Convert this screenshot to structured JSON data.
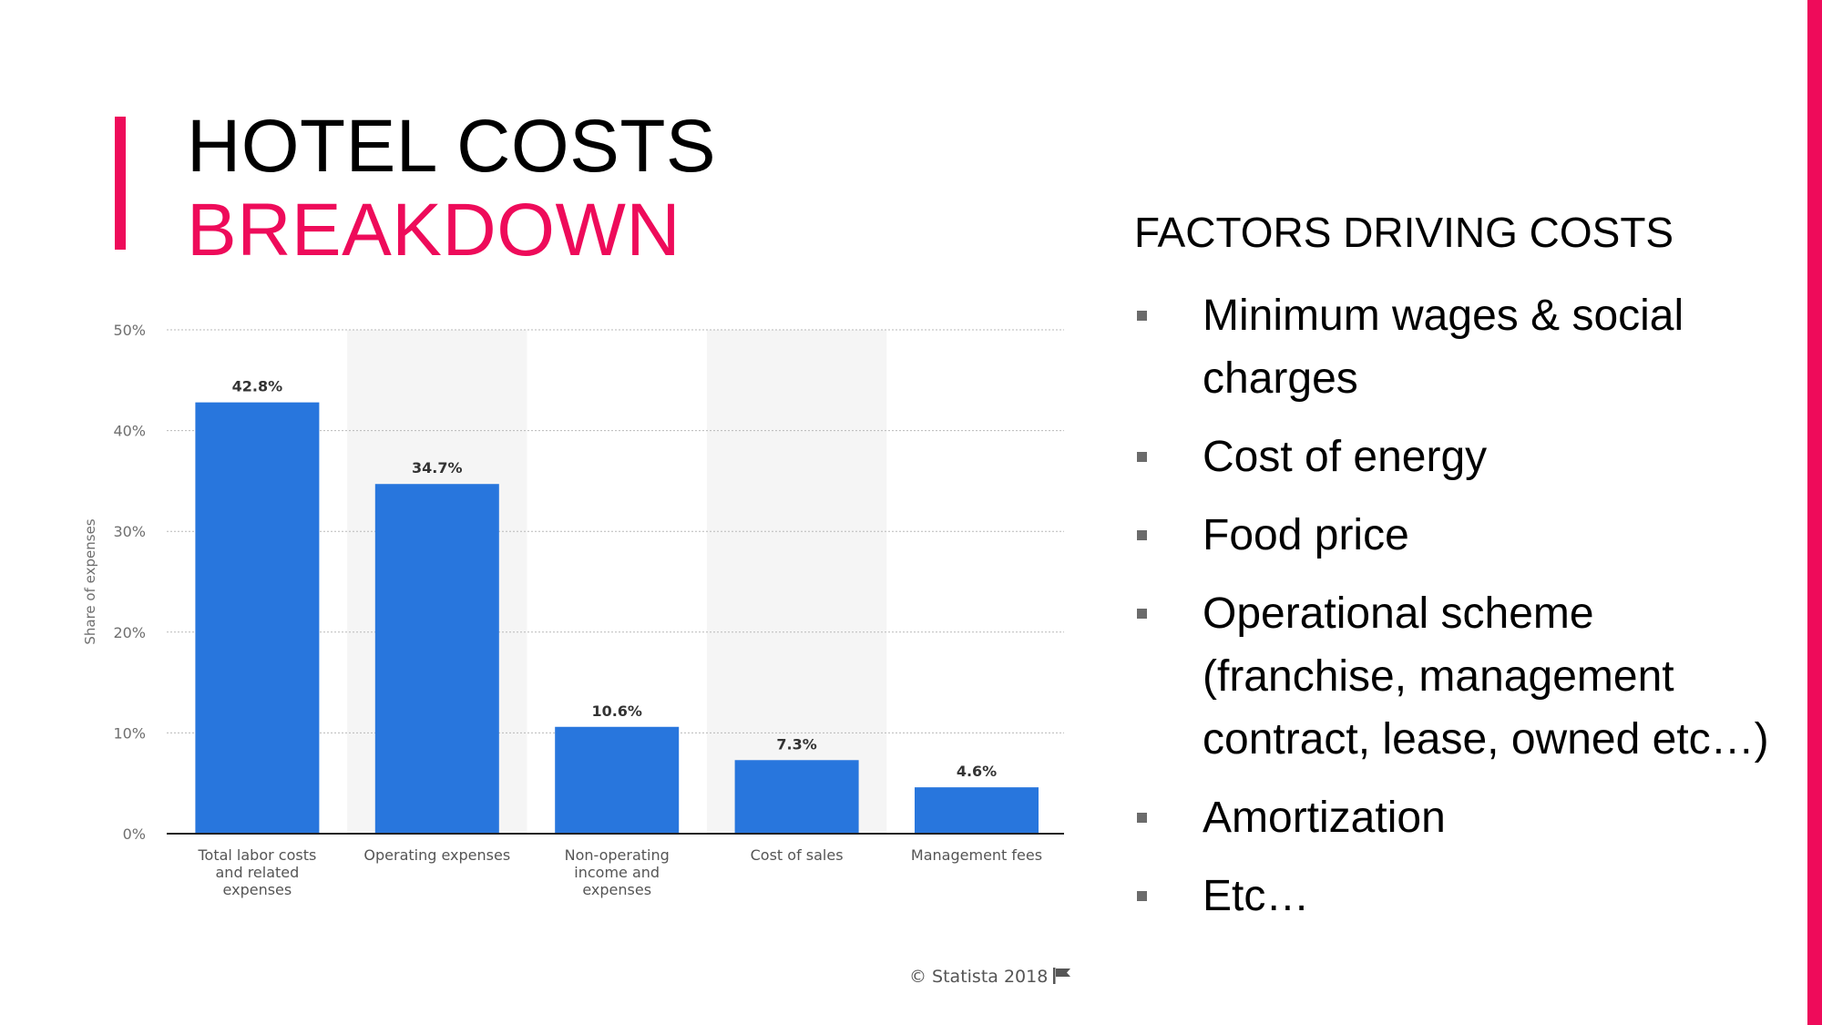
{
  "title": {
    "line1": "HOTEL COSTS",
    "line2": "BREAKDOWN"
  },
  "accent_color": "#ee0b5a",
  "bar_color": "#2876dd",
  "chart_data": {
    "type": "bar",
    "ylabel": "Share of expenses",
    "ylim": [
      0,
      50
    ],
    "yticks": [
      "0%",
      "10%",
      "20%",
      "30%",
      "40%",
      "50%"
    ],
    "categories": [
      "Total labor costs\nand related\nexpenses",
      "Operating expenses",
      "Non-operating\nincome and\nexpenses",
      "Cost of sales",
      "Management fees"
    ],
    "values": [
      42.8,
      34.7,
      10.6,
      7.3,
      4.6
    ],
    "value_labels": [
      "42.8%",
      "34.7%",
      "10.6%",
      "7.3%",
      "4.6%"
    ],
    "grid": true
  },
  "source": "© Statista 2018",
  "source_icon": "flag-icon",
  "factors": {
    "heading": "FACTORS DRIVING COSTS",
    "items": [
      "Minimum wages & social\ncharges",
      "Cost of energy",
      "Food price",
      "Operational scheme\n(franchise, management\ncontract, lease, owned etc…)",
      "Amortization",
      "Etc…"
    ]
  }
}
